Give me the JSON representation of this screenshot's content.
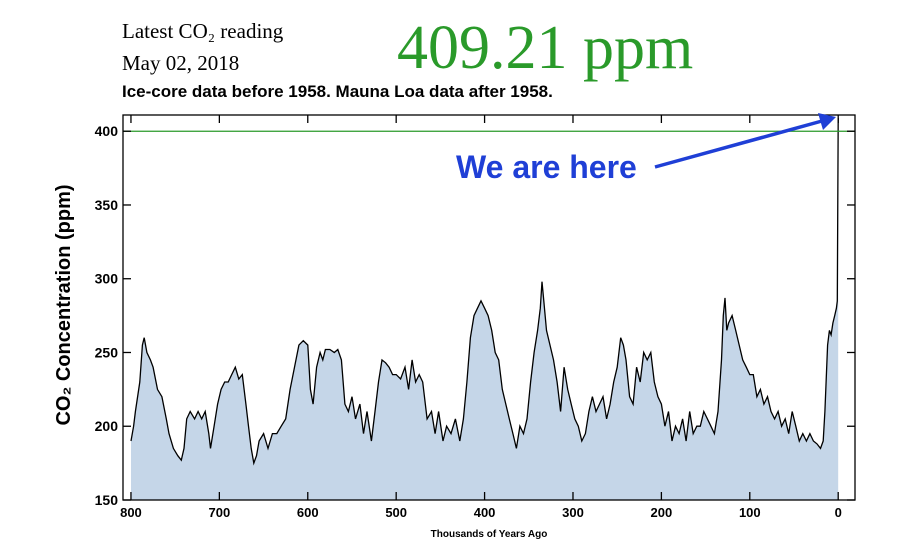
{
  "chart_data": {
    "type": "area",
    "header": {
      "label": "Latest CO₂ reading",
      "date": "May 02, 2018",
      "reading": "409.21 ppm"
    },
    "title": "Ice-core data before 1958. Mauna Loa data after 1958.",
    "xlabel": "Thousands of Years Ago",
    "ylabel": "CO₂ Concentration (ppm)",
    "annotation": "We are here",
    "color": "#c5d6e8",
    "line_color": "#000000",
    "hline": {
      "value": 400,
      "color": "#2a9a2a"
    },
    "xlim": [
      809,
      -19
    ],
    "ylim": [
      150,
      411
    ],
    "xticks": [
      800,
      700,
      600,
      500,
      400,
      300,
      200,
      100,
      0
    ],
    "yticks": [
      150,
      200,
      250,
      300,
      350,
      400
    ],
    "x": [
      800,
      797,
      795,
      790,
      787,
      785,
      782,
      778,
      775,
      770,
      765,
      760,
      757,
      752,
      747,
      743,
      740,
      737,
      733,
      728,
      724,
      720,
      716,
      712,
      710,
      706,
      702,
      698,
      694,
      690,
      686,
      682,
      678,
      674,
      670,
      667,
      664,
      661,
      658,
      655,
      650,
      645,
      640,
      635,
      630,
      625,
      620,
      615,
      610,
      605,
      600,
      597,
      594,
      590,
      586,
      583,
      580,
      575,
      570,
      566,
      562,
      558,
      554,
      550,
      546,
      541,
      537,
      533,
      528,
      524,
      520,
      516,
      512,
      508,
      504,
      500,
      495,
      490,
      486,
      482,
      478,
      474,
      470,
      465,
      460,
      456,
      452,
      447,
      443,
      438,
      433,
      428,
      424,
      420,
      416,
      412,
      408,
      404,
      400,
      396,
      392,
      388,
      384,
      380,
      376,
      372,
      368,
      364,
      360,
      356,
      352,
      348,
      344,
      340,
      337,
      335,
      333,
      330,
      326,
      322,
      318,
      314,
      310,
      306,
      302,
      298,
      294,
      290,
      286,
      282,
      278,
      274,
      270,
      266,
      262,
      258,
      254,
      250,
      246,
      243,
      240,
      236,
      232,
      228,
      224,
      220,
      216,
      212,
      208,
      204,
      200,
      196,
      192,
      188,
      184,
      180,
      176,
      172,
      168,
      164,
      160,
      156,
      152,
      148,
      144,
      140,
      136,
      132,
      130,
      128,
      126,
      124,
      120,
      116,
      112,
      108,
      104,
      100,
      96,
      92,
      88,
      84,
      80,
      76,
      72,
      68,
      64,
      60,
      56,
      52,
      48,
      44,
      40,
      36,
      32,
      28,
      24,
      20,
      17,
      15,
      12,
      10,
      8,
      6,
      4,
      2,
      1,
      0
    ],
    "values": [
      190,
      200,
      210,
      230,
      255,
      260,
      250,
      245,
      240,
      225,
      220,
      205,
      195,
      185,
      180,
      177,
      185,
      205,
      210,
      205,
      210,
      205,
      210,
      195,
      185,
      200,
      215,
      225,
      230,
      230,
      235,
      240,
      232,
      235,
      215,
      200,
      185,
      175,
      180,
      190,
      195,
      185,
      195,
      195,
      200,
      205,
      225,
      240,
      255,
      258,
      255,
      225,
      215,
      240,
      250,
      245,
      252,
      252,
      250,
      252,
      245,
      215,
      210,
      220,
      205,
      215,
      195,
      210,
      190,
      210,
      230,
      245,
      243,
      240,
      235,
      235,
      232,
      240,
      225,
      245,
      230,
      235,
      230,
      205,
      210,
      195,
      210,
      190,
      200,
      195,
      205,
      190,
      205,
      230,
      260,
      275,
      280,
      285,
      280,
      275,
      265,
      250,
      245,
      225,
      215,
      205,
      195,
      185,
      200,
      195,
      205,
      230,
      250,
      265,
      280,
      298,
      285,
      265,
      255,
      245,
      230,
      210,
      240,
      225,
      215,
      205,
      200,
      190,
      195,
      210,
      220,
      210,
      215,
      220,
      205,
      215,
      230,
      240,
      260,
      255,
      245,
      220,
      215,
      240,
      230,
      250,
      245,
      250,
      230,
      220,
      215,
      200,
      210,
      190,
      200,
      195,
      205,
      190,
      210,
      195,
      200,
      200,
      210,
      205,
      200,
      195,
      210,
      245,
      275,
      287,
      265,
      270,
      275,
      265,
      255,
      245,
      240,
      235,
      235,
      220,
      225,
      215,
      220,
      210,
      205,
      210,
      200,
      205,
      195,
      210,
      200,
      190,
      195,
      190,
      195,
      190,
      188,
      185,
      190,
      210,
      255,
      265,
      262,
      270,
      275,
      280,
      285,
      409
    ]
  }
}
